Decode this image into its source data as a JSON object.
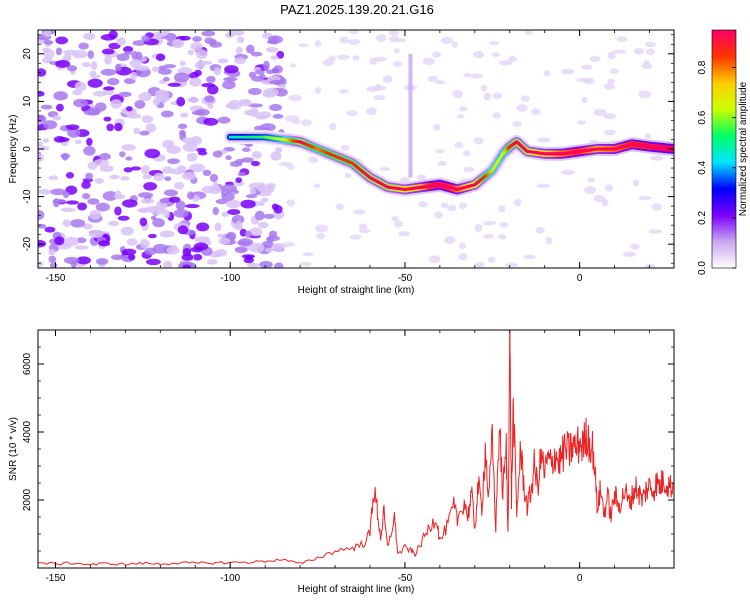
{
  "title": "PAZ1.2025.139.20.21.G16",
  "chart_data": [
    {
      "type": "heatmap",
      "xlabel": "Height of straight line (km)",
      "ylabel": "Frequency (Hz)",
      "xlim": [
        -155,
        27
      ],
      "ylim": [
        -25,
        25
      ],
      "xticks": [
        -150,
        -100,
        -50,
        0
      ],
      "yticks": [
        -20,
        -10,
        0,
        10,
        20
      ],
      "colorbar": {
        "label": "Normalized spectral amplitude",
        "range": [
          0,
          0.95
        ],
        "ticks": [
          0.0,
          0.2,
          0.4,
          0.6,
          0.8
        ],
        "colormap": [
          "#ffffff",
          "#c9a6f0",
          "#7a00ff",
          "#0000ff",
          "#00e5ff",
          "#00ff66",
          "#ccff00",
          "#ffcc00",
          "#ff3300",
          "#ff0066"
        ]
      },
      "ridge": {
        "x": [
          -100,
          -90,
          -85,
          -80,
          -75,
          -70,
          -65,
          -60,
          -55,
          -50,
          -45,
          -40,
          -35,
          -30,
          -25,
          -22,
          -20,
          -18,
          -15,
          -10,
          -5,
          0,
          5,
          10,
          15,
          20,
          27
        ],
        "y": [
          2.5,
          2.5,
          2.0,
          1.5,
          0,
          -1.5,
          -3,
          -6,
          -8,
          -8.5,
          -8,
          -7.5,
          -8.5,
          -7.5,
          -4.5,
          -1,
          0.5,
          1.5,
          -0.5,
          -1,
          -1,
          -0.5,
          0,
          0,
          1,
          0.5,
          0
        ],
        "amplitude": [
          0.3,
          0.35,
          0.4,
          0.6,
          0.5,
          0.55,
          0.55,
          0.6,
          0.6,
          0.65,
          0.75,
          0.95,
          0.8,
          0.65,
          0.45,
          0.4,
          0.55,
          0.6,
          0.6,
          0.7,
          0.8,
          0.85,
          0.75,
          0.8,
          0.85,
          0.9,
          0.95
        ]
      }
    },
    {
      "type": "line",
      "xlabel": "Height of straight line (km)",
      "ylabel": "SNR (10 * v/v)",
      "xlim": [
        -155,
        27
      ],
      "ylim": [
        0,
        7000
      ],
      "xticks": [
        -150,
        -100,
        -50,
        0
      ],
      "yticks": [
        2000,
        4000,
        6000
      ],
      "line_color": "#ee2222",
      "series": [
        {
          "x": [
            -155,
            -150,
            -145,
            -140,
            -135,
            -130,
            -125,
            -120,
            -115,
            -110,
            -105,
            -100,
            -95,
            -90,
            -85,
            -80,
            -75,
            -70,
            -65,
            -62,
            -60,
            -59,
            -58,
            -57,
            -56,
            -55,
            -53,
            -52,
            -50,
            -48,
            -47,
            -45,
            -43,
            -41,
            -40,
            -38,
            -36,
            -35,
            -33,
            -32,
            -31,
            -30,
            -29,
            -28,
            -27,
            -26,
            -25,
            -24,
            -23,
            -22,
            -21,
            -20.5,
            -20,
            -19.5,
            -19,
            -18,
            -17,
            -16,
            -15,
            -14,
            -13,
            -12,
            -11,
            -10,
            -9,
            -8,
            -7,
            -6,
            -5,
            -4,
            -3,
            -2,
            -1,
            0,
            1,
            2,
            3,
            4,
            5,
            6,
            7,
            8,
            9,
            10,
            11,
            12,
            13,
            14,
            15,
            16,
            17,
            18,
            19,
            20,
            21,
            22,
            23,
            24,
            25,
            26,
            27
          ],
          "y": [
            150,
            120,
            150,
            100,
            130,
            110,
            140,
            120,
            150,
            140,
            150,
            160,
            170,
            200,
            250,
            120,
            300,
            500,
            600,
            700,
            1000,
            2300,
            1800,
            900,
            1600,
            600,
            1500,
            400,
            600,
            500,
            400,
            800,
            1200,
            1500,
            800,
            1200,
            1800,
            1400,
            2000,
            1500,
            2200,
            1200,
            2400,
            1800,
            3500,
            2000,
            3800,
            1200,
            4200,
            2200,
            3500,
            1000,
            7000,
            2000,
            4800,
            1500,
            3500,
            2500,
            1800,
            2200,
            3000,
            2400,
            3300,
            2800,
            3200,
            3000,
            3400,
            3100,
            3300,
            3500,
            3400,
            3600,
            3500,
            3700,
            3600,
            3900,
            3700,
            3400,
            1800,
            2300,
            1600,
            2100,
            1500,
            2200,
            1800,
            2000,
            2300,
            1900,
            2100,
            2400,
            2200,
            2000,
            2300,
            2400,
            2300,
            2500,
            2400,
            2600,
            2500,
            2400,
            2450
          ]
        }
      ]
    }
  ]
}
